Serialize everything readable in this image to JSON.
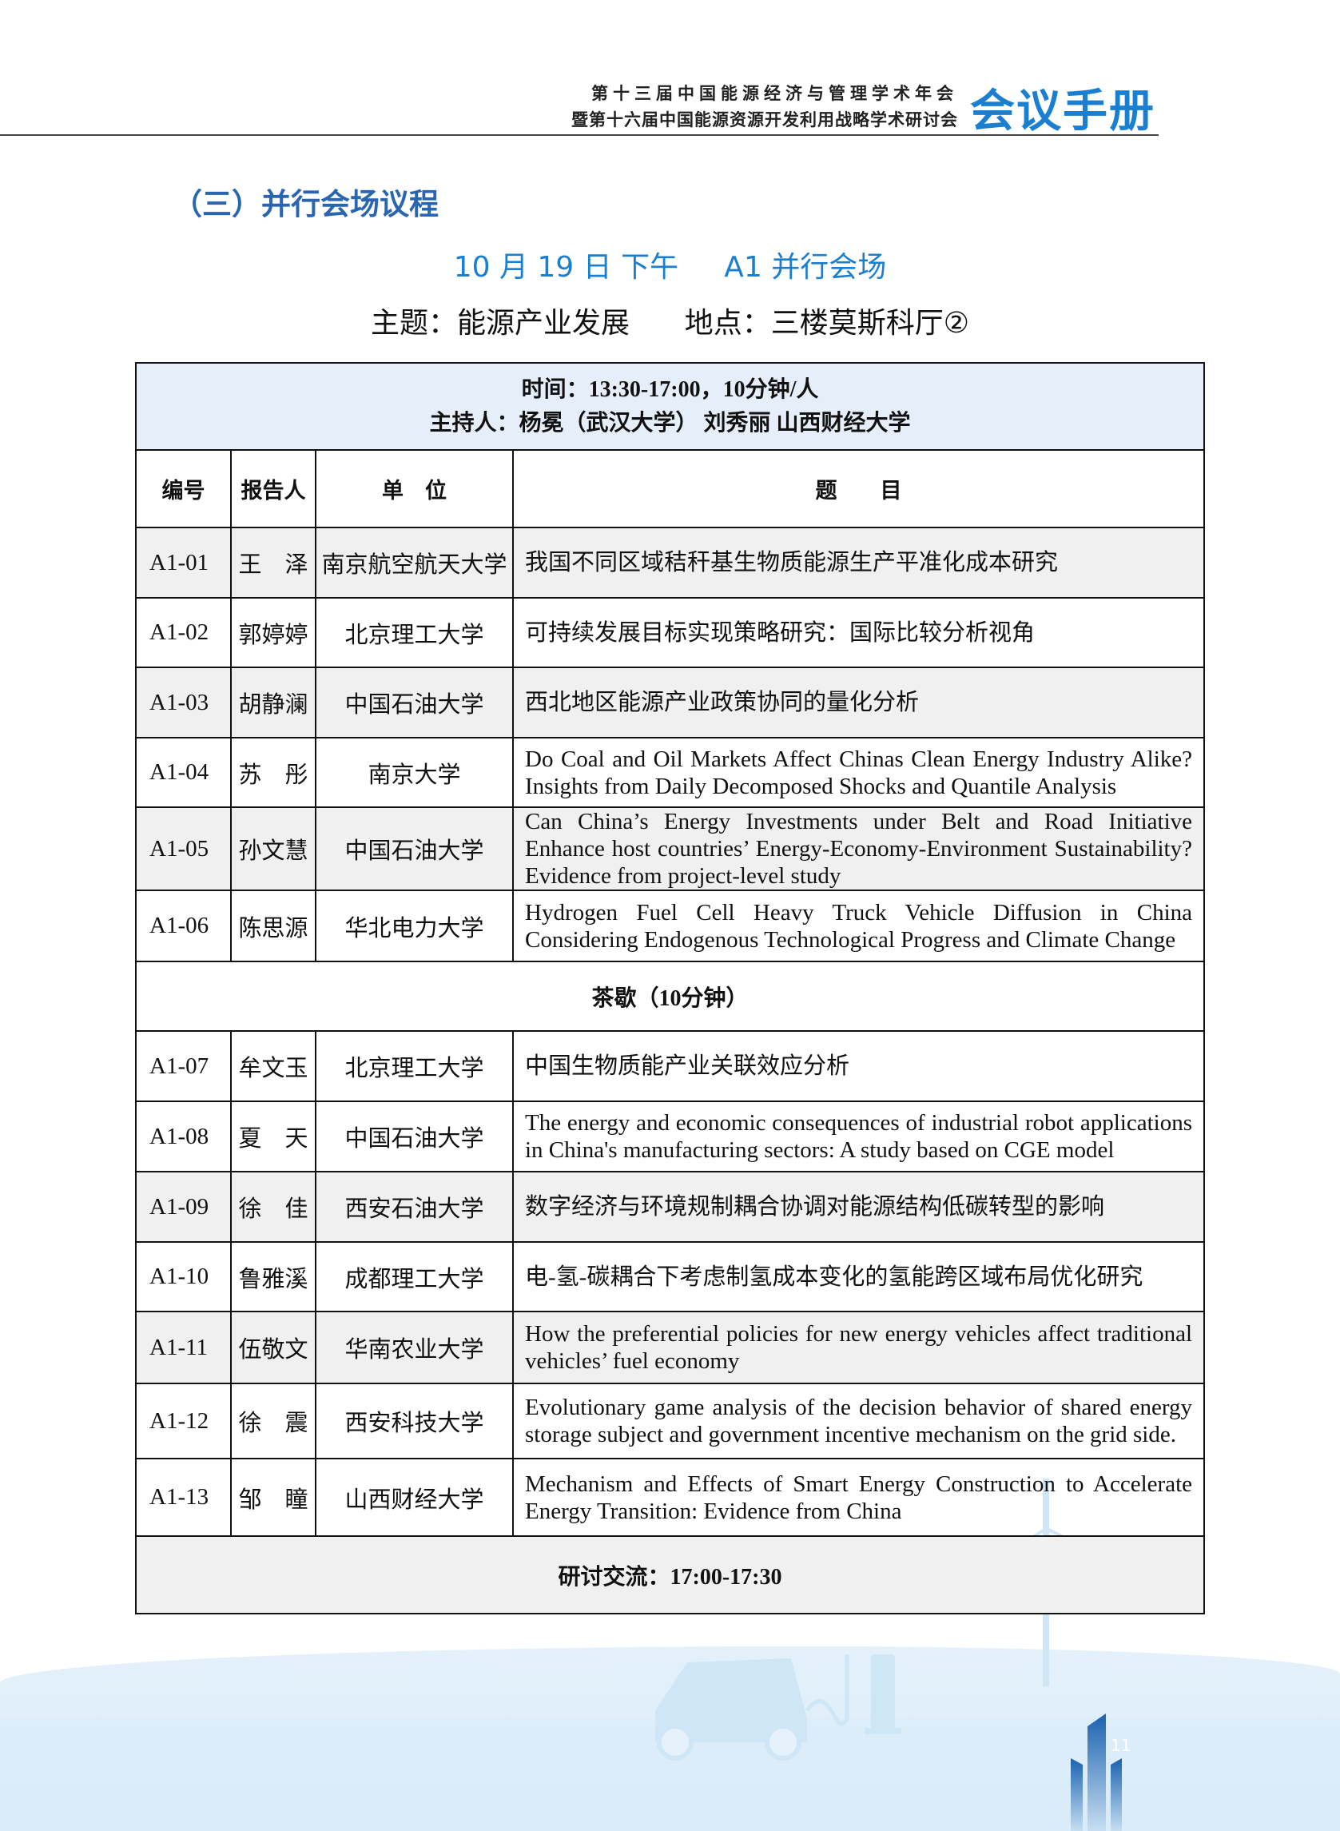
{
  "header": {
    "line1": "第十三届中国能源经济与管理学术年会",
    "line2": "暨第十六届中国能源资源开发利用战略学术研讨会",
    "brand": "会议手册"
  },
  "section_title": "（三）并行会场议程",
  "session": {
    "title": "10 月 19 日 下午     A1 并行会场",
    "theme_line": "主题：能源产业发展      地点：三楼莫斯科厅②"
  },
  "table": {
    "time": "时间：13:30-17:00，10分钟/人",
    "hosts": "主持人：杨冕（武汉大学）  刘秀丽 山西财经大学",
    "columns": [
      "编号",
      "报告人",
      "单　位",
      "题　　目"
    ],
    "rows": [
      {
        "id": "A1-01",
        "speaker": "王　泽",
        "org": "南京航空航天大学",
        "title": "我国不同区域秸秆基生物质能源生产平准化成本研究"
      },
      {
        "id": "A1-02",
        "speaker": "郭婷婷",
        "org": "北京理工大学",
        "title": "可持续发展目标实现策略研究：国际比较分析视角"
      },
      {
        "id": "A1-03",
        "speaker": "胡静澜",
        "org": "中国石油大学",
        "title": "西北地区能源产业政策协同的量化分析"
      },
      {
        "id": "A1-04",
        "speaker": "苏　彤",
        "org": "南京大学",
        "title": "Do Coal and Oil Markets Affect Chinas Clean Energy Industry Alike? Insights from Daily Decomposed Shocks and Quantile Analysis"
      },
      {
        "id": "A1-05",
        "speaker": "孙文慧",
        "org": "中国石油大学",
        "title": "Can China’s Energy Investments under Belt and Road Initiative Enhance host countries’ Energy-Economy-Environment Sustainability? Evidence from project-level study"
      },
      {
        "id": "A1-06",
        "speaker": "陈思源",
        "org": "华北电力大学",
        "title": "Hydrogen Fuel Cell Heavy Truck Vehicle Diffusion in China Considering Endogenous Technological Progress and Climate Change"
      },
      {
        "id": "A1-07",
        "speaker": "牟文玉",
        "org": "北京理工大学",
        "title": "中国生物质能产业关联效应分析"
      },
      {
        "id": "A1-08",
        "speaker": "夏　天",
        "org": "中国石油大学",
        "title": "The energy and economic consequences of industrial robot applications in China's manufacturing sectors: A study based on CGE model"
      },
      {
        "id": "A1-09",
        "speaker": "徐　佳",
        "org": "西安石油大学",
        "title": "数字经济与环境规制耦合协调对能源结构低碳转型的影响"
      },
      {
        "id": "A1-10",
        "speaker": "鲁雅溪",
        "org": "成都理工大学",
        "title": "电-氢-碳耦合下考虑制氢成本变化的氢能跨区域布局优化研究"
      },
      {
        "id": "A1-11",
        "speaker": "伍敬文",
        "org": "华南农业大学",
        "title": "How the preferential policies for new energy vehicles affect traditional vehicles’ fuel economy"
      },
      {
        "id": "A1-12",
        "speaker": "徐　震",
        "org": "西安科技大学",
        "title": "Evolutionary game analysis of the decision behavior of shared energy storage subject and government incentive mechanism on the grid side."
      },
      {
        "id": "A1-13",
        "speaker": "邹　瞳",
        "org": "山西财经大学",
        "title": "Mechanism and Effects of Smart Energy Construction to Accelerate Energy Transition: Evidence from China"
      }
    ],
    "break": "茶歇（10分钟）",
    "discussion": "研讨交流：17:00-17:30"
  },
  "page_number": "11",
  "colors": {
    "accent": "#1a7fd0",
    "section": "#2a66b0",
    "info_bg": "#e6eef9",
    "row_shade": "#f0f0f0"
  }
}
